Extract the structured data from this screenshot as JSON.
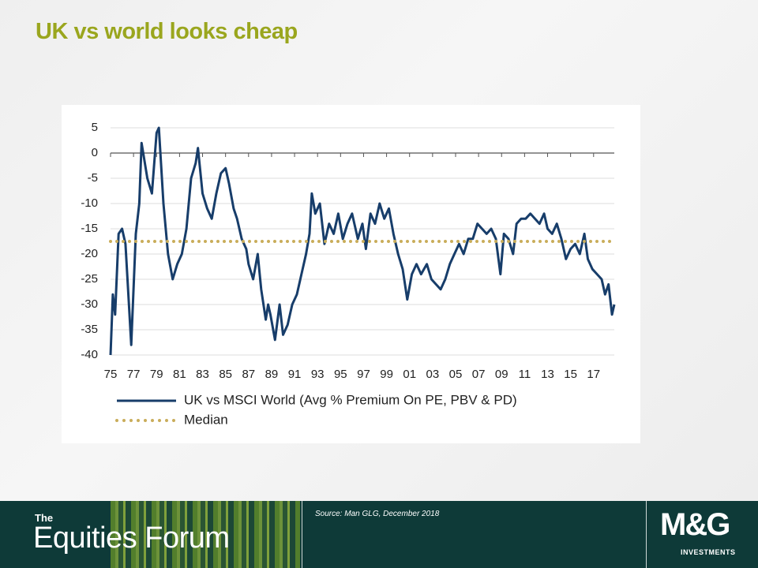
{
  "slide_title": "UK vs world looks cheap",
  "chart_data": {
    "type": "line",
    "series": [
      {
        "name": "UK vs MSCI World (Avg % Premium On PE, PBV & PD)",
        "color": "#173d6a",
        "style": "solid",
        "x": [
          1975.0,
          1975.2,
          1975.4,
          1975.7,
          1976.0,
          1976.3,
          1976.6,
          1976.8,
          1977.2,
          1977.5,
          1977.7,
          1978.2,
          1978.6,
          1979.0,
          1979.2,
          1979.6,
          1980.0,
          1980.4,
          1980.8,
          1981.2,
          1981.6,
          1982.0,
          1982.4,
          1982.6,
          1983.0,
          1983.4,
          1983.8,
          1984.2,
          1984.6,
          1985.0,
          1985.3,
          1985.7,
          1986.0,
          1986.4,
          1986.8,
          1987.0,
          1987.4,
          1987.8,
          1988.1,
          1988.5,
          1988.7,
          1988.9,
          1989.3,
          1989.7,
          1990.0,
          1990.4,
          1990.8,
          1991.2,
          1991.6,
          1992.0,
          1992.3,
          1992.5,
          1992.8,
          1993.2,
          1993.6,
          1994.0,
          1994.4,
          1994.8,
          1995.2,
          1995.6,
          1996.0,
          1996.5,
          1996.9,
          1997.2,
          1997.6,
          1998.0,
          1998.4,
          1998.8,
          1999.2,
          1999.6,
          2000.0,
          2000.4,
          2000.8,
          2001.2,
          2001.6,
          2002.0,
          2002.5,
          2002.9,
          2003.3,
          2003.7,
          2004.1,
          2004.5,
          2004.9,
          2005.3,
          2005.7,
          2006.1,
          2006.5,
          2006.9,
          2007.3,
          2007.7,
          2008.1,
          2008.5,
          2008.9,
          2009.2,
          2009.6,
          2010.0,
          2010.3,
          2010.7,
          2011.1,
          2011.5,
          2011.9,
          2012.3,
          2012.7,
          2013.0,
          2013.4,
          2013.8,
          2014.2,
          2014.6,
          2015.0,
          2015.4,
          2015.8,
          2016.2,
          2016.5,
          2016.9,
          2017.3,
          2017.7,
          2018.0,
          2018.3,
          2018.6,
          2018.8
        ],
        "values": [
          -40,
          -28,
          -32,
          -16,
          -15,
          -18,
          -30,
          -38,
          -16,
          -10,
          2,
          -5,
          -8,
          4,
          5,
          -10,
          -20,
          -25,
          -22,
          -20,
          -15,
          -5,
          -2,
          1,
          -8,
          -11,
          -13,
          -8,
          -4,
          -3,
          -6,
          -11,
          -13,
          -17,
          -19,
          -22,
          -25,
          -20,
          -27,
          -33,
          -30,
          -32,
          -37,
          -30,
          -36,
          -34,
          -30,
          -28,
          -24,
          -20,
          -16,
          -8,
          -12,
          -10,
          -18,
          -14,
          -16,
          -12,
          -17,
          -14,
          -12,
          -17,
          -14,
          -19,
          -12,
          -14,
          -10,
          -13,
          -11,
          -16,
          -20,
          -23,
          -29,
          -24,
          -22,
          -24,
          -22,
          -25,
          -26,
          -27,
          -25,
          -22,
          -20,
          -18,
          -20,
          -17,
          -17,
          -14,
          -15,
          -16,
          -15,
          -17,
          -24,
          -16,
          -17,
          -20,
          -14,
          -13,
          -13,
          -12,
          -13,
          -14,
          -12,
          -15,
          -16,
          -14,
          -17,
          -21,
          -19,
          -18,
          -20,
          -16,
          -21,
          -23,
          -24,
          -25,
          -28,
          -26,
          -32,
          -30
        ]
      },
      {
        "name": "Median",
        "color": "#c9ad5a",
        "style": "dotted",
        "x": [
          1975.0,
          2018.8
        ],
        "values": [
          -17.5,
          -17.5
        ]
      }
    ],
    "xlim": [
      1975,
      2018.8
    ],
    "xticks": [
      {
        "value": 1975,
        "label": "75"
      },
      {
        "value": 1977,
        "label": "77"
      },
      {
        "value": 1979,
        "label": "79"
      },
      {
        "value": 1981,
        "label": "81"
      },
      {
        "value": 1983,
        "label": "83"
      },
      {
        "value": 1985,
        "label": "85"
      },
      {
        "value": 1987,
        "label": "87"
      },
      {
        "value": 1989,
        "label": "89"
      },
      {
        "value": 1991,
        "label": "91"
      },
      {
        "value": 1993,
        "label": "93"
      },
      {
        "value": 1995,
        "label": "95"
      },
      {
        "value": 1997,
        "label": "97"
      },
      {
        "value": 1999,
        "label": "99"
      },
      {
        "value": 2001,
        "label": "01"
      },
      {
        "value": 2003,
        "label": "03"
      },
      {
        "value": 2005,
        "label": "05"
      },
      {
        "value": 2007,
        "label": "07"
      },
      {
        "value": 2009,
        "label": "09"
      },
      {
        "value": 2011,
        "label": "11"
      },
      {
        "value": 2013,
        "label": "13"
      },
      {
        "value": 2015,
        "label": "15"
      },
      {
        "value": 2017,
        "label": "17"
      }
    ],
    "ylim": [
      -40,
      5
    ],
    "yticks": [
      5,
      0,
      -5,
      -10,
      -15,
      -20,
      -25,
      -30,
      -35,
      -40
    ],
    "grid": true,
    "legend": "bottom"
  },
  "footer": {
    "series_prefix": "The",
    "series_name": "Equities Forum",
    "source": "Source: Man GLG,  December 2018",
    "logo": "M&G",
    "logo_sub": "INVESTMENTS"
  }
}
